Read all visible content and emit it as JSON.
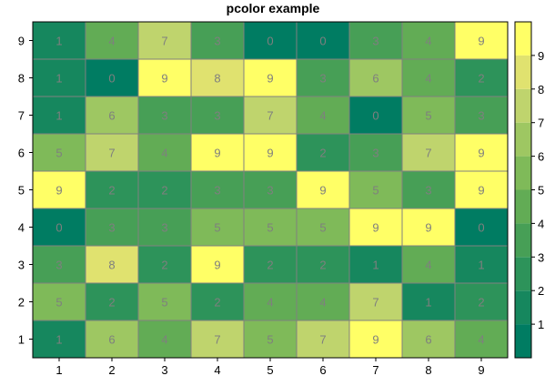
{
  "chart_data": {
    "type": "heatmap",
    "title": "pcolor example",
    "xlabel": "",
    "ylabel": "",
    "x": [
      1,
      2,
      3,
      4,
      5,
      6,
      7,
      8,
      9
    ],
    "y": [
      1,
      2,
      3,
      4,
      5,
      6,
      7,
      8,
      9
    ],
    "x_tick_labels": [
      "1",
      "2",
      "3",
      "4",
      "5",
      "6",
      "7",
      "8",
      "9"
    ],
    "y_tick_labels": [
      "1",
      "2",
      "3",
      "4",
      "5",
      "6",
      "7",
      "8",
      "9"
    ],
    "rows_top_to_bottom": [
      {
        "y": 9,
        "values": [
          1,
          4,
          7,
          3,
          0,
          0,
          3,
          4,
          9
        ]
      },
      {
        "y": 8,
        "values": [
          1,
          0,
          9,
          8,
          9,
          3,
          6,
          4,
          2
        ]
      },
      {
        "y": 7,
        "values": [
          1,
          6,
          3,
          3,
          7,
          4,
          0,
          5,
          3
        ]
      },
      {
        "y": 6,
        "values": [
          5,
          7,
          4,
          9,
          9,
          2,
          3,
          7,
          9
        ]
      },
      {
        "y": 5,
        "values": [
          9,
          2,
          2,
          3,
          3,
          9,
          5,
          3,
          9
        ]
      },
      {
        "y": 4,
        "values": [
          0,
          3,
          3,
          5,
          5,
          5,
          9,
          9,
          0
        ]
      },
      {
        "y": 3,
        "values": [
          3,
          8,
          2,
          9,
          2,
          2,
          1,
          4,
          1
        ]
      },
      {
        "y": 2,
        "values": [
          5,
          2,
          5,
          2,
          4,
          4,
          7,
          1,
          2
        ]
      },
      {
        "y": 1,
        "values": [
          1,
          6,
          4,
          7,
          5,
          7,
          9,
          6,
          4
        ]
      }
    ],
    "colorbar": {
      "range": [
        0,
        9
      ],
      "levels": 10,
      "tick_values": [
        1,
        2,
        3,
        4,
        5,
        6,
        7,
        8,
        9
      ],
      "tick_labels": [
        "1",
        "2",
        "3",
        "4",
        "5",
        "6",
        "7",
        "8",
        "9"
      ],
      "placement": "right"
    },
    "colormap": [
      "#007c62",
      "#16875e",
      "#2d935a",
      "#479f56",
      "#62ac55",
      "#7fba59",
      "#9ec762",
      "#bfd46d",
      "#e0e26f",
      "#ffff66"
    ],
    "grid": false
  }
}
